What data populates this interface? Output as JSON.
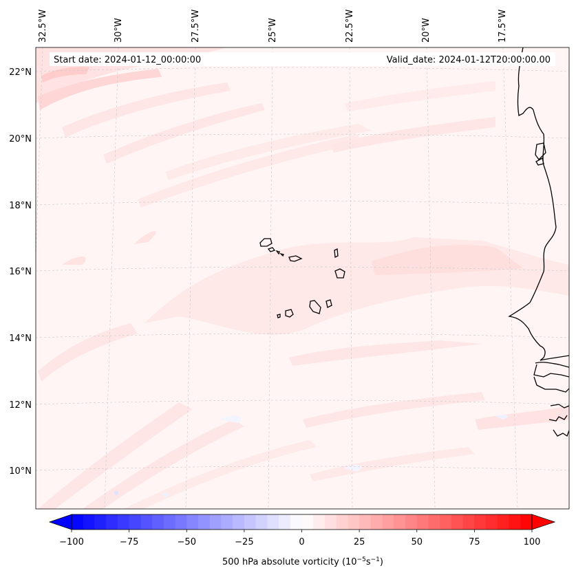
{
  "map": {
    "start_date_label": "Start date: 2024-01-12_00:00:00",
    "valid_date_label": "Valid_date: 2024-01-12T20:00:00.00",
    "lon_labels": [
      "32.5°W",
      "30°W",
      "27.5°W",
      "25°W",
      "22.5°W",
      "20°W",
      "17.5°W"
    ],
    "lat_labels": [
      "22°N",
      "20°N",
      "18°N",
      "16°N",
      "14°N",
      "12°N",
      "10°N"
    ],
    "background_color": "#fff5f5"
  },
  "colorbar": {
    "label_main": "500 hPa absolute vorticity (10",
    "label_exp1": "−5",
    "label_mid": "s",
    "label_exp2": "−1",
    "label_end": ")",
    "ticks": [
      "−100",
      "−75",
      "−50",
      "−25",
      "0",
      "25",
      "50",
      "75",
      "100"
    ],
    "min": -100,
    "max": 100,
    "levels": 40,
    "color_min": "#0000ff",
    "color_mid": "#ffffff",
    "color_max": "#ff0000"
  }
}
